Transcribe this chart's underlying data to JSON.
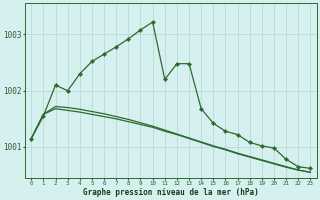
{
  "xlabel": "Graphe pression niveau de la mer (hPa)",
  "bg_color": "#d6f0f0",
  "grid_color": "#b8dada",
  "line_color": "#2d6a2d",
  "hours": [
    0,
    1,
    2,
    3,
    4,
    5,
    6,
    7,
    8,
    9,
    10,
    11,
    12,
    13,
    14,
    15,
    16,
    17,
    18,
    19,
    20,
    21,
    22,
    23
  ],
  "line_jagged": [
    1001.15,
    1001.55,
    1002.1,
    1002.0,
    1002.3,
    1002.52,
    1002.65,
    1002.78,
    1002.92,
    1003.08,
    1003.22,
    1002.2,
    1002.48,
    1002.48,
    1001.68,
    1001.42,
    1001.28,
    1001.22,
    1001.08,
    1001.02,
    1000.98,
    1000.78,
    1000.65,
    1000.62
  ],
  "line_flat1": [
    1001.15,
    1001.58,
    1001.68,
    1001.65,
    1001.62,
    1001.58,
    1001.54,
    1001.5,
    1001.45,
    1001.4,
    1001.35,
    1001.28,
    1001.22,
    1001.15,
    1001.08,
    1001.01,
    1000.95,
    1000.88,
    1000.82,
    1000.76,
    1000.7,
    1000.64,
    1000.59,
    1000.55
  ],
  "line_flat2": [
    1001.15,
    1001.58,
    1001.72,
    1001.7,
    1001.67,
    1001.63,
    1001.59,
    1001.54,
    1001.49,
    1001.43,
    1001.37,
    1001.3,
    1001.23,
    1001.16,
    1001.09,
    1001.02,
    1000.96,
    1000.89,
    1000.83,
    1000.77,
    1000.71,
    1000.65,
    1000.59,
    1000.55
  ],
  "ylim_min": 1000.45,
  "ylim_max": 1003.55,
  "yticks": [
    1001.0,
    1002.0,
    1003.0
  ]
}
